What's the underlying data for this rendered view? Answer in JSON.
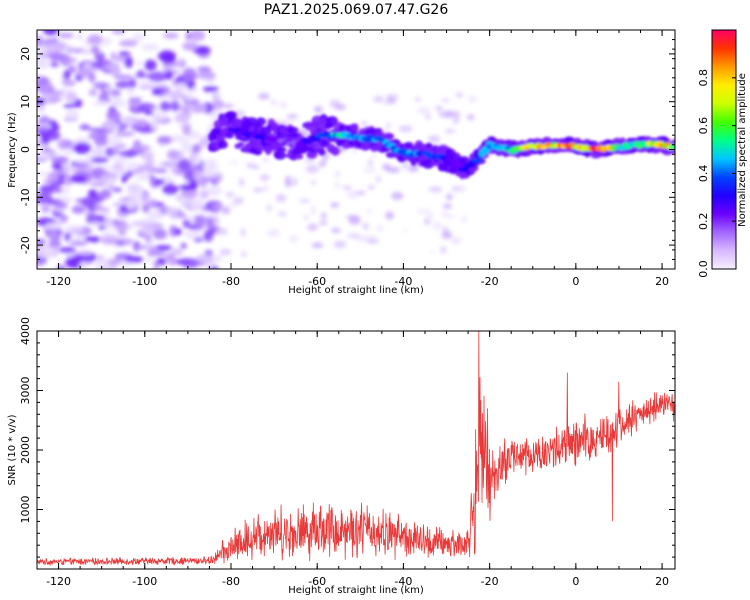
{
  "title": "PAZ1.2025.069.07.47.G26",
  "colors": {
    "snr_line": "#e83a3a",
    "colormap": [
      "#f5f0ff",
      "#d8b8ff",
      "#a366ff",
      "#6a00ff",
      "#2200ff",
      "#0044ff",
      "#00c8ff",
      "#00ff88",
      "#44ff00",
      "#ccff00",
      "#ffee00",
      "#ff9900",
      "#ff3300",
      "#ff0066"
    ]
  },
  "chart_data": [
    {
      "type": "heatmap",
      "name": "spectrogram",
      "xlabel": "Height of straight line (km)",
      "ylabel": "Frequency (Hz)",
      "xlim": [
        -125,
        23
      ],
      "ylim": [
        -25,
        25
      ],
      "xticks": [
        -120,
        -100,
        -80,
        -60,
        -40,
        -20,
        0,
        20
      ],
      "yticks": [
        -20,
        -10,
        0,
        10,
        20
      ],
      "colorbar": {
        "label": "Normalized spectral amplitude",
        "range": [
          0,
          1
        ],
        "ticks": [
          "0.0",
          "0.2",
          "0.4",
          "0.6",
          "0.8"
        ]
      },
      "ridge": {
        "x": [
          -84,
          -80,
          -75,
          -70,
          -65,
          -62,
          -58,
          -55,
          -50,
          -45,
          -42,
          -38,
          -35,
          -32,
          -29,
          -26,
          -24,
          -22,
          -20,
          -15,
          -10,
          -5,
          -2,
          0,
          5,
          10,
          15,
          20,
          23
        ],
        "freq": [
          3,
          4,
          3,
          2,
          1,
          2,
          3,
          3,
          2.5,
          2,
          0,
          -1,
          -1,
          -1.5,
          -2.5,
          -4,
          -3,
          -1,
          1,
          0,
          0.5,
          1,
          1,
          0.5,
          0,
          0.5,
          1,
          1,
          0.5
        ],
        "amplitude": [
          0.25,
          0.3,
          0.3,
          0.25,
          0.2,
          0.3,
          0.45,
          0.5,
          0.45,
          0.4,
          0.45,
          0.45,
          0.4,
          0.35,
          0.3,
          0.3,
          0.35,
          0.4,
          0.45,
          0.55,
          0.8,
          0.85,
          0.9,
          0.8,
          0.95,
          0.6,
          0.55,
          0.9,
          0.6
        ]
      },
      "noise_region_xmax": -84
    },
    {
      "type": "line",
      "name": "snr",
      "xlabel": "Height of straight line (km)",
      "ylabel": "SNR (10 * v/v)",
      "xlim": [
        -125,
        23
      ],
      "ylim": [
        0,
        4000
      ],
      "xticks": [
        -120,
        -100,
        -80,
        -60,
        -40,
        -20,
        0,
        20
      ],
      "yticks": [
        1000,
        2000,
        3000,
        4000
      ],
      "envelope": {
        "x": [
          -125,
          -85,
          -80,
          -75,
          -70,
          -65,
          -60,
          -55,
          -50,
          -45,
          -40,
          -35,
          -30,
          -25,
          -23,
          -22,
          -20,
          -18,
          -15,
          -10,
          -5,
          0,
          5,
          10,
          15,
          20,
          23
        ],
        "mean": [
          120,
          140,
          350,
          550,
          650,
          600,
          700,
          650,
          680,
          600,
          550,
          450,
          420,
          420,
          1500,
          2200,
          1400,
          1700,
          1900,
          1900,
          2000,
          2100,
          2200,
          2400,
          2600,
          2800,
          2700
        ],
        "spread": [
          50,
          60,
          250,
          350,
          400,
          400,
          450,
          420,
          430,
          380,
          320,
          280,
          250,
          250,
          1200,
          900,
          700,
          400,
          350,
          320,
          350,
          400,
          400,
          300,
          250,
          200,
          200
        ]
      },
      "spikes": [
        {
          "x": -22.5,
          "y": 4000
        },
        {
          "x": -20.5,
          "y": 2700
        },
        {
          "x": -2,
          "y": 3300
        },
        {
          "x": 8.5,
          "y": 800
        },
        {
          "x": 10,
          "y": 3150
        }
      ]
    }
  ]
}
